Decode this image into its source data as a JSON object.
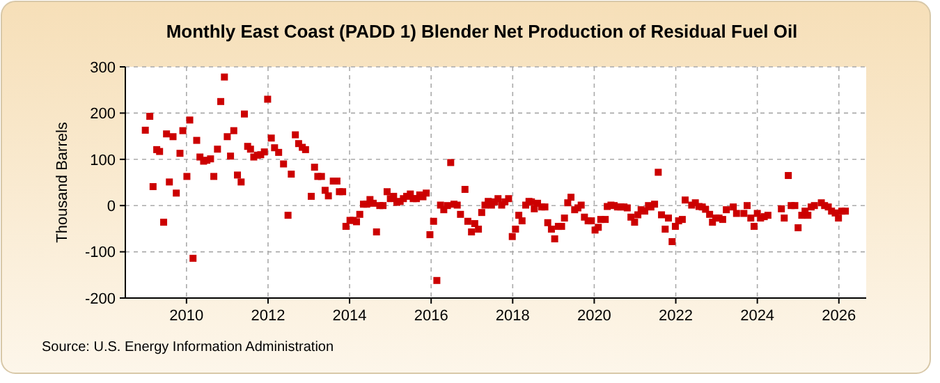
{
  "chart_data": {
    "type": "scatter",
    "title": "Monthly East Coast (PADD 1) Blender Net Production of Residual Fuel Oil",
    "ylabel": "Thousand Barrels",
    "annotations": [
      "Source: U.S. Energy Information Administration"
    ],
    "xlim": [
      2008.5,
      2026.67
    ],
    "xticks": [
      2010,
      2012,
      2014,
      2016,
      2018,
      2020,
      2022,
      2024,
      2026
    ],
    "ylim": [
      -200,
      300
    ],
    "yticks": [
      -200,
      -100,
      0,
      100,
      200,
      300
    ],
    "grid": true,
    "marker": "square",
    "series": [
      {
        "color": "#cc0000",
        "x": [
          2008.99,
          2009.1,
          2009.18,
          2009.27,
          2009.34,
          2009.44,
          2009.51,
          2009.58,
          2009.67,
          2009.75,
          2009.84,
          2009.91,
          2010.01,
          2010.08,
          2010.16,
          2010.25,
          2010.33,
          2010.42,
          2010.5,
          2010.59,
          2010.67,
          2010.76,
          2010.84,
          2010.93,
          2011.0,
          2011.08,
          2011.16,
          2011.25,
          2011.34,
          2011.42,
          2011.5,
          2011.57,
          2011.65,
          2011.74,
          2011.82,
          2011.91,
          2011.99,
          2012.08,
          2012.16,
          2012.26,
          2012.38,
          2012.49,
          2012.57,
          2012.67,
          2012.75,
          2012.84,
          2012.92,
          2013.06,
          2013.14,
          2013.22,
          2013.31,
          2013.4,
          2013.48,
          2013.6,
          2013.69,
          2013.75,
          2013.83,
          2013.91,
          2014.01,
          2014.09,
          2014.17,
          2014.25,
          2014.34,
          2014.42,
          2014.5,
          2014.58,
          2014.66,
          2014.74,
          2014.82,
          2014.92,
          2015.0,
          2015.08,
          2015.16,
          2015.24,
          2015.32,
          2015.4,
          2015.49,
          2015.56,
          2015.64,
          2015.72,
          2015.8,
          2015.88,
          2015.97,
          2016.06,
          2016.14,
          2016.23,
          2016.31,
          2016.4,
          2016.48,
          2016.56,
          2016.64,
          2016.72,
          2016.83,
          2016.9,
          2016.99,
          2017.07,
          2017.16,
          2017.24,
          2017.32,
          2017.4,
          2017.48,
          2017.56,
          2017.64,
          2017.73,
          2017.81,
          2017.9,
          2017.99,
          2018.07,
          2018.15,
          2018.23,
          2018.32,
          2018.4,
          2018.46,
          2018.53,
          2018.61,
          2018.71,
          2018.79,
          2018.86,
          2018.95,
          2019.03,
          2019.12,
          2019.2,
          2019.27,
          2019.35,
          2019.43,
          2019.52,
          2019.6,
          2019.68,
          2019.76,
          2019.85,
          2019.93,
          2020.02,
          2020.1,
          2020.16,
          2020.27,
          2020.32,
          2020.41,
          2020.49,
          2020.57,
          2020.65,
          2020.73,
          2020.81,
          2020.9,
          2020.99,
          2021.07,
          2021.15,
          2021.24,
          2021.33,
          2021.39,
          2021.48,
          2021.57,
          2021.65,
          2021.74,
          2021.82,
          2021.91,
          2021.99,
          2022.07,
          2022.16,
          2022.23,
          2022.39,
          2022.48,
          2022.57,
          2022.65,
          2022.73,
          2022.83,
          2022.9,
          2022.98,
          2023.06,
          2023.15,
          2023.24,
          2023.41,
          2023.49,
          2023.67,
          2023.75,
          2023.84,
          2023.92,
          2024.0,
          2024.08,
          2024.17,
          2024.26,
          2024.59,
          2024.66,
          2024.76,
          2024.83,
          2024.92,
          2025.0,
          2025.09,
          2025.17,
          2025.24,
          2025.32,
          2025.4,
          2025.57,
          2025.65,
          2025.74,
          2025.82,
          2025.91,
          2025.99,
          2026.07,
          2026.16
        ],
        "values": [
          163,
          193,
          41,
          121,
          117,
          -36,
          155,
          51,
          149,
          27,
          113,
          162,
          63,
          185,
          -114,
          141,
          105,
          96,
          98,
          101,
          63,
          122,
          225,
          278,
          149,
          107,
          162,
          66,
          51,
          198,
          128,
          122,
          105,
          109,
          110,
          116,
          230,
          146,
          125,
          115,
          90,
          -21,
          68,
          153,
          134,
          126,
          121,
          20,
          83,
          63,
          63,
          33,
          21,
          53,
          53,
          30,
          30,
          -45,
          -32,
          -32,
          -35,
          -19,
          3,
          3,
          13,
          5,
          -57,
          0,
          0,
          30,
          15,
          20,
          7,
          9,
          15,
          20,
          25,
          15,
          15,
          23,
          19,
          27,
          -63,
          -34,
          -162,
          1,
          -9,
          0,
          93,
          3,
          1,
          -19,
          35,
          -34,
          -57,
          -39,
          -51,
          -15,
          1,
          9,
          1,
          8,
          15,
          1,
          8,
          15,
          -67,
          -51,
          -21,
          -33,
          1,
          9,
          8,
          -7,
          5,
          -3,
          -3,
          -37,
          -51,
          -72,
          -45,
          -45,
          -27,
          6,
          18,
          -9,
          -5,
          1,
          -25,
          -33,
          -33,
          -53,
          -47,
          -30,
          -30,
          -2,
          1,
          0,
          -3,
          -3,
          -3,
          -5,
          -25,
          -36,
          -20,
          -9,
          -12,
          0,
          -3,
          3,
          72,
          -20,
          -51,
          -27,
          -78,
          -45,
          -33,
          -30,
          12,
          1,
          6,
          -2,
          -3,
          -8,
          -19,
          -36,
          -27,
          -27,
          -30,
          -9,
          -3,
          -17,
          -17,
          0,
          -27,
          -45,
          -17,
          -27,
          -24,
          -21,
          -7,
          -27,
          65,
          0,
          0,
          -48,
          -21,
          -12,
          -21,
          -3,
          0,
          6,
          0,
          -3,
          -12,
          -16,
          -27,
          -12,
          -12
        ]
      }
    ]
  }
}
